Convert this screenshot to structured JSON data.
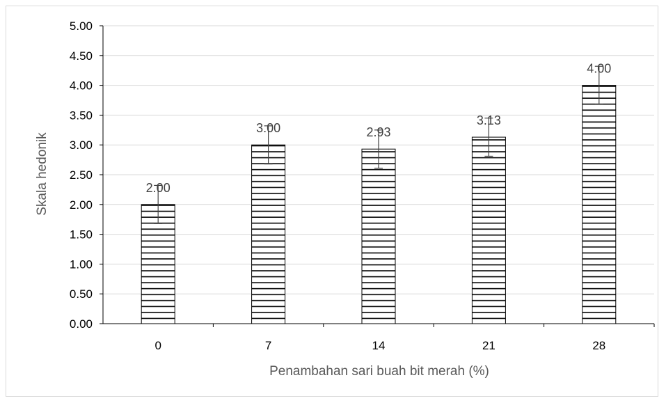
{
  "chart_data": {
    "type": "bar",
    "title": "",
    "xlabel": "Penambahan sari buah bit merah (%)",
    "ylabel": "Skala hedonik",
    "categories": [
      "0",
      "7",
      "14",
      "21",
      "28"
    ],
    "values": [
      2.0,
      3.0,
      2.93,
      3.13,
      4.0
    ],
    "value_labels": [
      "2.00",
      "3.00",
      "2.93",
      "3.13",
      "4.00"
    ],
    "error": [
      0.32,
      0.32,
      0.32,
      0.32,
      0.32
    ],
    "ylim": [
      0,
      5
    ],
    "yticks": [
      "0.00",
      "0.50",
      "1.00",
      "1.50",
      "2.00",
      "2.50",
      "3.00",
      "3.50",
      "4.00",
      "4.50",
      "5.00"
    ],
    "grid": true,
    "bar_fill": "horizontal-stripes",
    "colors": {
      "bar_stroke": "#000000",
      "grid": "#d9d9d9",
      "axis": "#000000"
    }
  }
}
